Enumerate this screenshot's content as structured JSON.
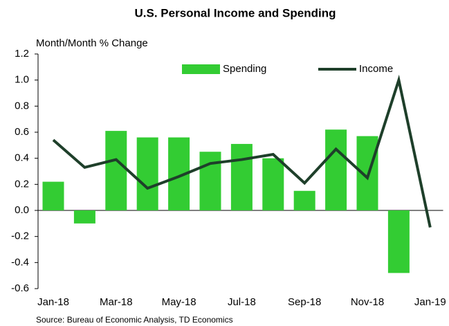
{
  "chart_data": {
    "type": "bar-line",
    "title": "U.S. Personal Income and Spending",
    "y_axis_label": "Month/Month % Change",
    "source": "Source:  Bureau of Economic Analysis, TD Economics",
    "categories": [
      "Jan-18",
      null,
      "Mar-18",
      null,
      "May-18",
      null,
      "Jul-18",
      null,
      "Sep-18",
      null,
      "Nov-18",
      null,
      "Jan-19"
    ],
    "series": [
      {
        "name": "Spending",
        "type": "bar",
        "color": "#33cc33",
        "values": [
          0.22,
          -0.1,
          0.61,
          0.56,
          0.56,
          0.45,
          0.51,
          0.4,
          0.15,
          0.62,
          0.57,
          -0.48,
          null
        ]
      },
      {
        "name": "Income",
        "type": "line",
        "color": "#1e3f2a",
        "values": [
          0.54,
          0.33,
          0.39,
          0.17,
          0.26,
          0.36,
          0.39,
          0.43,
          0.21,
          0.47,
          0.25,
          1.0,
          -0.13
        ]
      }
    ],
    "ylim": [
      -0.6,
      1.2
    ],
    "yticks": [
      -0.6,
      -0.4,
      -0.2,
      {
        "value": 0,
        "label": "0.0"
      },
      0.2,
      0.4,
      0.6,
      0.8,
      {
        "value": 1,
        "label": "1.0"
      },
      1.2
    ],
    "legend": "top"
  }
}
